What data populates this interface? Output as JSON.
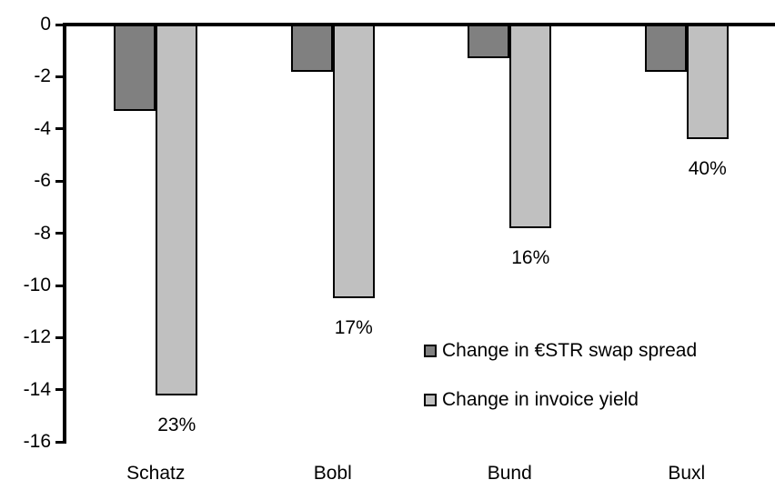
{
  "chart_data": {
    "type": "bar",
    "title": "",
    "categories": [
      "Schatz",
      "Bobl",
      "Bund",
      "Buxl"
    ],
    "series": [
      {
        "name": "Change in €STR swap spread",
        "color": "#808080",
        "border_color": "#000000",
        "values": [
          -3.3,
          -1.8,
          -1.3,
          -1.8
        ]
      },
      {
        "name": "Change in invoice yield",
        "color": "#c0c0c0",
        "border_color": "#000000",
        "values": [
          -14.2,
          -10.5,
          -7.8,
          -4.4
        ],
        "data_labels": [
          "23%",
          "17%",
          "16%",
          "40%"
        ]
      }
    ],
    "ylim": [
      -16,
      0
    ],
    "yticks": [
      0,
      -2,
      -4,
      -6,
      -8,
      -10,
      -12,
      -14,
      -16
    ],
    "grid": false,
    "legend_position": "inside-center-right",
    "background": "#ffffff",
    "axis_color": "#000000"
  }
}
